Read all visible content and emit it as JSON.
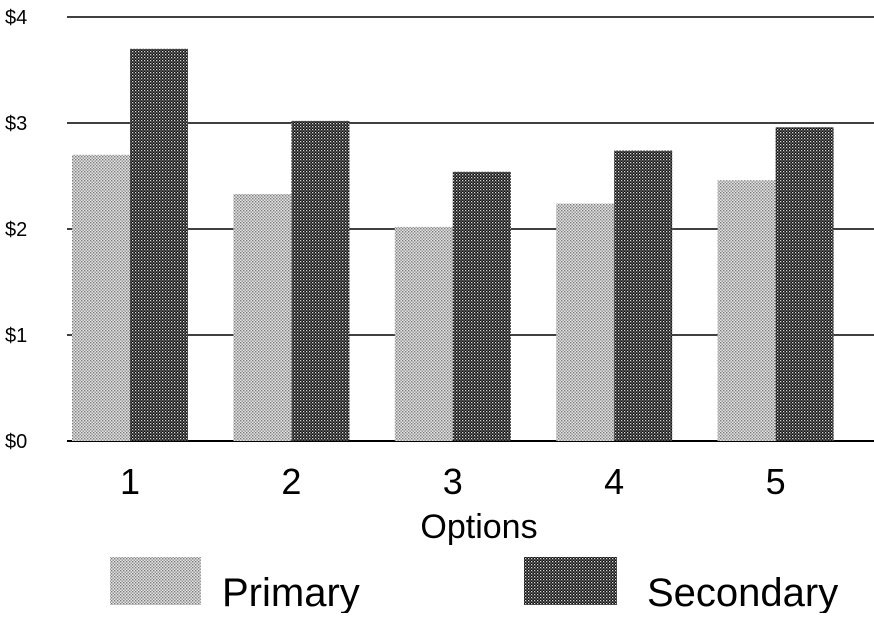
{
  "chart_data": {
    "type": "bar",
    "title": "",
    "xlabel": "Options",
    "ylabel": "",
    "categories": [
      "1",
      "2",
      "3",
      "4",
      "5"
    ],
    "ylim": [
      0,
      4
    ],
    "yticks": [
      "$0",
      "$1",
      "$2",
      "$3",
      "$4"
    ],
    "grid": true,
    "legend_position": "bottom",
    "series": [
      {
        "name": "Primary",
        "values": [
          2.7,
          2.33,
          2.02,
          2.24,
          2.46
        ],
        "pattern": "light-dots",
        "color": "#9a9a9a"
      },
      {
        "name": "Secondary",
        "values": [
          3.7,
          3.02,
          2.54,
          2.74,
          2.96
        ],
        "pattern": "dark-dots",
        "color": "#2a2a2a"
      }
    ]
  }
}
